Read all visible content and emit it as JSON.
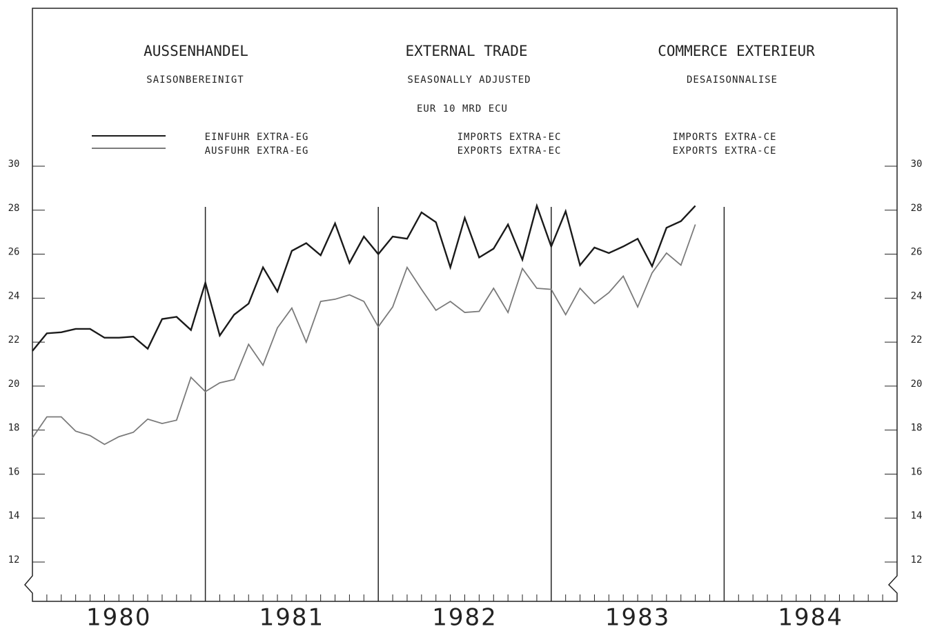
{
  "chart_data": {
    "type": "line",
    "titles": [
      "AUSSENHANDEL",
      "EXTERNAL TRADE",
      "COMMERCE EXTERIEUR"
    ],
    "subtitles": [
      "SAISONBEREINIGT",
      "SEASONALLY ADJUSTED",
      "DESAISONNALISE"
    ],
    "unit": "EUR 10  MRD ECU",
    "legend_labels": [
      [
        "EINFUHR EXTRA-EG",
        "AUSFUHR EXTRA-EG"
      ],
      [
        "IMPORTS EXTRA-EC",
        "EXPORTS EXTRA-EC"
      ],
      [
        "IMPORTS EXTRA-CE",
        "EXPORTS EXTRA-CE"
      ]
    ],
    "years": [
      "1980",
      "1981",
      "1982",
      "1983",
      "1984"
    ],
    "categories": [
      null,
      null,
      null,
      null,
      null,
      null,
      null,
      null,
      null,
      null,
      null,
      null,
      null,
      null,
      null,
      null,
      null,
      null,
      null,
      null,
      null,
      null,
      null,
      null,
      null,
      null,
      null,
      null,
      null,
      null,
      null,
      null,
      null,
      null,
      null,
      null,
      null,
      null,
      null,
      null,
      null,
      null,
      null,
      null,
      null,
      null,
      null
    ],
    "series": [
      {
        "name": "EINFUHR EXTRA-EG",
        "color": "#1a1a1a",
        "values": [
          21.6,
          22.4,
          22.45,
          22.6,
          22.6,
          22.2,
          22.2,
          22.25,
          21.7,
          23.05,
          23.15,
          22.55,
          24.7,
          22.3,
          23.25,
          23.75,
          25.4,
          24.3,
          26.15,
          26.5,
          25.95,
          27.4,
          25.6,
          26.8,
          26.0,
          26.8,
          26.7,
          27.9,
          27.45,
          25.4,
          27.65,
          25.85,
          26.25,
          27.35,
          25.75,
          28.2,
          26.35,
          27.95,
          25.5,
          26.3,
          26.05,
          26.35,
          26.7,
          25.45,
          27.2,
          27.5,
          28.2
        ]
      },
      {
        "name": "AUSFUHR EXTRA-EG",
        "color": "#7a7a7a",
        "values": [
          17.65,
          18.6,
          18.6,
          17.95,
          17.75,
          17.35,
          17.7,
          17.9,
          18.5,
          18.3,
          18.45,
          20.4,
          19.75,
          20.15,
          20.3,
          21.9,
          20.95,
          22.65,
          23.55,
          22.0,
          23.85,
          23.95,
          24.15,
          23.85,
          22.7,
          23.6,
          25.4,
          24.4,
          23.45,
          23.85,
          23.35,
          23.4,
          24.45,
          23.35,
          25.35,
          24.45,
          24.4,
          23.25,
          24.45,
          23.75,
          24.25,
          25.0,
          23.6,
          25.15,
          26.05,
          25.5,
          27.35
        ]
      }
    ],
    "ylim": [
      12,
      30
    ],
    "yticks": [
      12,
      14,
      16,
      18,
      20,
      22,
      24,
      26,
      28,
      30
    ]
  }
}
